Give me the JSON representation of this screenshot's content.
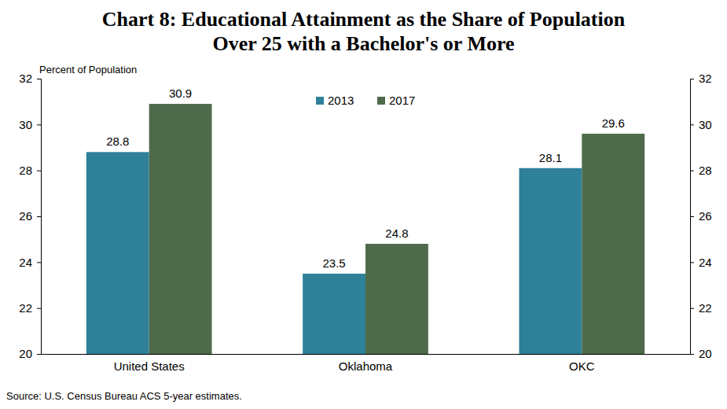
{
  "chart_data": {
    "type": "bar",
    "title": [
      "Chart 8: Educational Attainment as the Share of Population",
      "Over 25 with a Bachelor's or More"
    ],
    "y_label": "Percent of Population",
    "source": "Source: U.S. Census Bureau ACS 5-year estimates.",
    "categories": [
      "United States",
      "Oklahoma",
      "OKC"
    ],
    "series": [
      {
        "name": "2013",
        "color": "#2e8199",
        "values": [
          28.8,
          23.5,
          28.1
        ]
      },
      {
        "name": "2017",
        "color": "#4e6a4b",
        "values": [
          30.9,
          24.8,
          29.6
        ]
      }
    ],
    "ylim": [
      20,
      32
    ],
    "yticks": [
      20,
      22,
      24,
      26,
      28,
      30,
      32
    ],
    "y2lim": [
      20,
      32
    ],
    "y2ticks": [
      20,
      22,
      24,
      26,
      28,
      30,
      32
    ],
    "grid": false,
    "legend": "top",
    "data_labels": true
  }
}
